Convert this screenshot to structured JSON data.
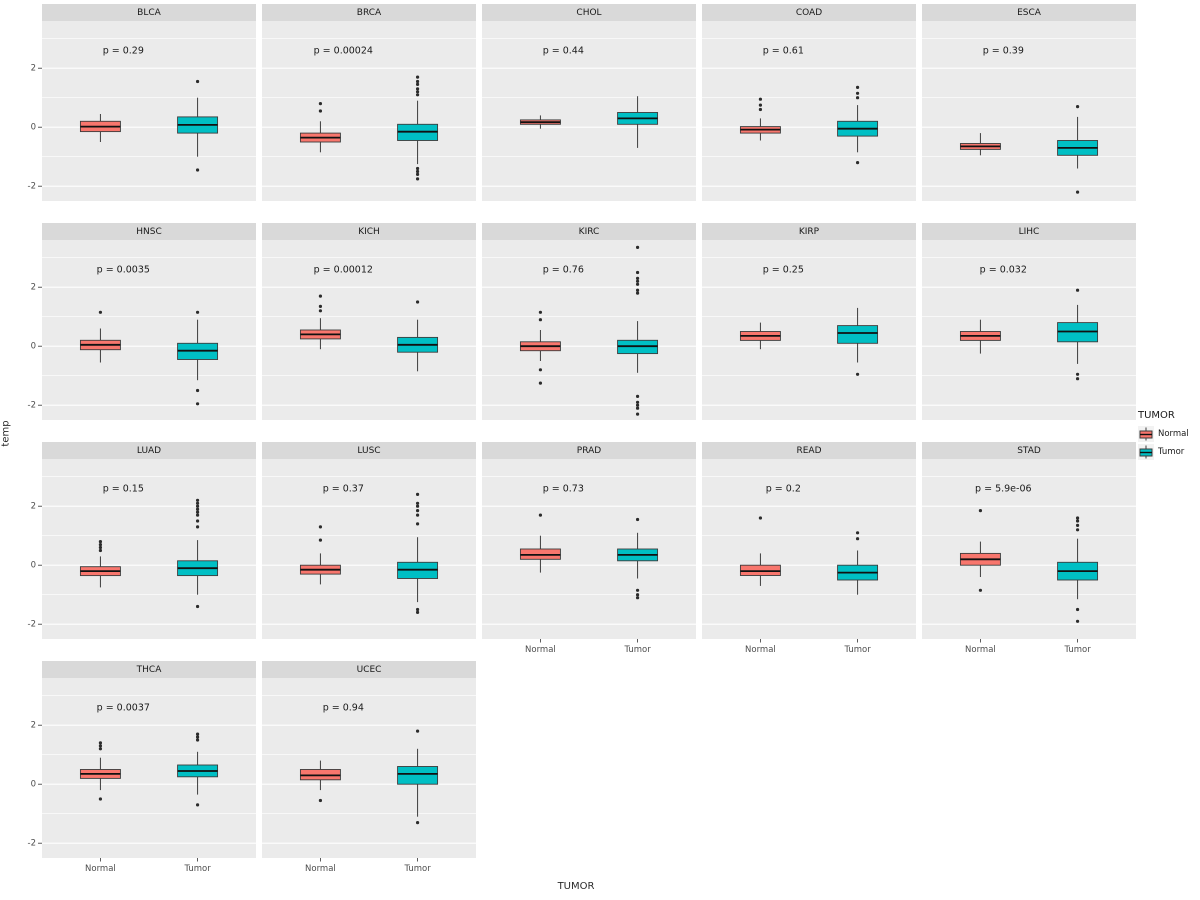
{
  "chart_data": {
    "type": "boxplot",
    "title": "",
    "xlabel": "TUMOR",
    "ylabel": "temp",
    "ylim": [
      -2.5,
      3.6
    ],
    "yticks": [
      -2,
      0,
      2
    ],
    "minor_ticks": [
      -1,
      1,
      3
    ],
    "categories": [
      "Normal",
      "Tumor"
    ],
    "legend": {
      "title": "TUMOR",
      "entries": [
        {
          "label": "Normal",
          "color": "#F8766D"
        },
        {
          "label": "Tumor",
          "color": "#00BFC4"
        }
      ]
    },
    "colors": {
      "panel_bg": "#EBEBEB",
      "strip_bg": "#D9D9D9",
      "grid": "#FFFFFF",
      "box_stroke": "#3C3C3C",
      "median": "#111111",
      "outlier": "#2B2B2B",
      "series": {
        "Normal": "#F8766D",
        "Tumor": "#00BFC4"
      }
    },
    "facets": [
      {
        "name": "BLCA",
        "p_label": "p = 0.29",
        "boxes": [
          {
            "group": "Normal",
            "lower_whisker": -0.5,
            "q1": -0.15,
            "median": 0.02,
            "q3": 0.2,
            "upper_whisker": 0.45,
            "outliers": []
          },
          {
            "group": "Tumor",
            "lower_whisker": -1.0,
            "q1": -0.2,
            "median": 0.08,
            "q3": 0.35,
            "upper_whisker": 1.0,
            "outliers": [
              1.55,
              -1.45
            ]
          }
        ]
      },
      {
        "name": "BRCA",
        "p_label": "p = 0.00024",
        "boxes": [
          {
            "group": "Normal",
            "lower_whisker": -0.85,
            "q1": -0.5,
            "median": -0.35,
            "q3": -0.2,
            "upper_whisker": 0.2,
            "outliers": [
              0.55,
              0.8
            ]
          },
          {
            "group": "Tumor",
            "lower_whisker": -1.25,
            "q1": -0.45,
            "median": -0.15,
            "q3": 0.1,
            "upper_whisker": 0.9,
            "outliers": [
              1.1,
              1.2,
              1.3,
              1.45,
              1.55,
              1.7,
              -1.4,
              -1.5,
              -1.6,
              -1.75
            ]
          }
        ]
      },
      {
        "name": "CHOL",
        "p_label": "p = 0.44",
        "boxes": [
          {
            "group": "Normal",
            "lower_whisker": -0.05,
            "q1": 0.1,
            "median": 0.17,
            "q3": 0.25,
            "upper_whisker": 0.4,
            "outliers": []
          },
          {
            "group": "Tumor",
            "lower_whisker": -0.7,
            "q1": 0.1,
            "median": 0.3,
            "q3": 0.5,
            "upper_whisker": 1.05,
            "outliers": []
          }
        ]
      },
      {
        "name": "COAD",
        "p_label": "p = 0.61",
        "boxes": [
          {
            "group": "Normal",
            "lower_whisker": -0.45,
            "q1": -0.2,
            "median": -0.08,
            "q3": 0.02,
            "upper_whisker": 0.3,
            "outliers": [
              0.6,
              0.75,
              0.95
            ]
          },
          {
            "group": "Tumor",
            "lower_whisker": -0.85,
            "q1": -0.3,
            "median": -0.05,
            "q3": 0.2,
            "upper_whisker": 0.75,
            "outliers": [
              1.0,
              1.15,
              1.35,
              -1.2
            ]
          }
        ]
      },
      {
        "name": "ESCA",
        "p_label": "p = 0.39",
        "boxes": [
          {
            "group": "Normal",
            "lower_whisker": -0.95,
            "q1": -0.75,
            "median": -0.65,
            "q3": -0.55,
            "upper_whisker": -0.2,
            "outliers": []
          },
          {
            "group": "Tumor",
            "lower_whisker": -1.4,
            "q1": -0.95,
            "median": -0.7,
            "q3": -0.45,
            "upper_whisker": 0.35,
            "outliers": [
              0.7,
              -2.2
            ]
          }
        ]
      },
      {
        "name": "HNSC",
        "p_label": "p = 0.0035",
        "boxes": [
          {
            "group": "Normal",
            "lower_whisker": -0.55,
            "q1": -0.12,
            "median": 0.05,
            "q3": 0.2,
            "upper_whisker": 0.6,
            "outliers": [
              1.15
            ]
          },
          {
            "group": "Tumor",
            "lower_whisker": -1.15,
            "q1": -0.45,
            "median": -0.15,
            "q3": 0.1,
            "upper_whisker": 0.9,
            "outliers": [
              1.15,
              -1.5,
              -1.95
            ]
          }
        ]
      },
      {
        "name": "KICH",
        "p_label": "p = 0.00012",
        "boxes": [
          {
            "group": "Normal",
            "lower_whisker": -0.1,
            "q1": 0.25,
            "median": 0.4,
            "q3": 0.55,
            "upper_whisker": 0.95,
            "outliers": [
              1.2,
              1.35,
              1.7
            ]
          },
          {
            "group": "Tumor",
            "lower_whisker": -0.85,
            "q1": -0.2,
            "median": 0.05,
            "q3": 0.3,
            "upper_whisker": 0.9,
            "outliers": [
              1.5
            ]
          }
        ]
      },
      {
        "name": "KIRC",
        "p_label": "p = 0.76",
        "boxes": [
          {
            "group": "Normal",
            "lower_whisker": -0.5,
            "q1": -0.15,
            "median": 0.0,
            "q3": 0.15,
            "upper_whisker": 0.55,
            "outliers": [
              0.9,
              1.15,
              -0.8,
              -1.25
            ]
          },
          {
            "group": "Tumor",
            "lower_whisker": -0.9,
            "q1": -0.25,
            "median": 0.0,
            "q3": 0.2,
            "upper_whisker": 0.85,
            "outliers": [
              3.35,
              2.5,
              2.3,
              2.2,
              2.1,
              1.9,
              1.8,
              -1.7,
              -1.9,
              -2.0,
              -2.1,
              -2.3
            ]
          }
        ]
      },
      {
        "name": "KIRP",
        "p_label": "p = 0.25",
        "boxes": [
          {
            "group": "Normal",
            "lower_whisker": -0.1,
            "q1": 0.2,
            "median": 0.35,
            "q3": 0.5,
            "upper_whisker": 0.8,
            "outliers": []
          },
          {
            "group": "Tumor",
            "lower_whisker": -0.55,
            "q1": 0.1,
            "median": 0.45,
            "q3": 0.7,
            "upper_whisker": 1.3,
            "outliers": [
              -0.95
            ]
          }
        ]
      },
      {
        "name": "LIHC",
        "p_label": "p = 0.032",
        "boxes": [
          {
            "group": "Normal",
            "lower_whisker": -0.25,
            "q1": 0.2,
            "median": 0.35,
            "q3": 0.5,
            "upper_whisker": 0.9,
            "outliers": []
          },
          {
            "group": "Tumor",
            "lower_whisker": -0.6,
            "q1": 0.15,
            "median": 0.5,
            "q3": 0.8,
            "upper_whisker": 1.4,
            "outliers": [
              1.9,
              -0.95,
              -1.1
            ]
          }
        ]
      },
      {
        "name": "LUAD",
        "p_label": "p = 0.15",
        "boxes": [
          {
            "group": "Normal",
            "lower_whisker": -0.75,
            "q1": -0.35,
            "median": -0.2,
            "q3": -0.05,
            "upper_whisker": 0.3,
            "outliers": [
              0.5,
              0.6,
              0.7,
              0.8
            ]
          },
          {
            "group": "Tumor",
            "lower_whisker": -1.0,
            "q1": -0.35,
            "median": -0.1,
            "q3": 0.15,
            "upper_whisker": 0.85,
            "outliers": [
              2.2,
              2.1,
              2.0,
              1.9,
              1.8,
              1.7,
              1.5,
              1.3,
              -1.4
            ]
          }
        ]
      },
      {
        "name": "LUSC",
        "p_label": "p = 0.37",
        "boxes": [
          {
            "group": "Normal",
            "lower_whisker": -0.65,
            "q1": -0.3,
            "median": -0.15,
            "q3": 0.0,
            "upper_whisker": 0.4,
            "outliers": [
              0.85,
              1.3
            ]
          },
          {
            "group": "Tumor",
            "lower_whisker": -1.25,
            "q1": -0.45,
            "median": -0.15,
            "q3": 0.1,
            "upper_whisker": 0.95,
            "outliers": [
              2.4,
              2.1,
              2.0,
              1.85,
              1.7,
              1.4,
              -1.5,
              -1.6
            ]
          }
        ]
      },
      {
        "name": "PRAD",
        "p_label": "p = 0.73",
        "boxes": [
          {
            "group": "Normal",
            "lower_whisker": -0.25,
            "q1": 0.2,
            "median": 0.35,
            "q3": 0.55,
            "upper_whisker": 1.0,
            "outliers": [
              1.7
            ]
          },
          {
            "group": "Tumor",
            "lower_whisker": -0.45,
            "q1": 0.15,
            "median": 0.35,
            "q3": 0.55,
            "upper_whisker": 1.1,
            "outliers": [
              1.55,
              -0.85,
              -1.0,
              -1.1
            ]
          }
        ]
      },
      {
        "name": "READ",
        "p_label": "p = 0.2",
        "boxes": [
          {
            "group": "Normal",
            "lower_whisker": -0.7,
            "q1": -0.35,
            "median": -0.2,
            "q3": 0.0,
            "upper_whisker": 0.4,
            "outliers": [
              1.6
            ]
          },
          {
            "group": "Tumor",
            "lower_whisker": -1.0,
            "q1": -0.5,
            "median": -0.25,
            "q3": 0.0,
            "upper_whisker": 0.5,
            "outliers": [
              0.9,
              1.1
            ]
          }
        ]
      },
      {
        "name": "STAD",
        "p_label": "p = 5.9e-06",
        "boxes": [
          {
            "group": "Normal",
            "lower_whisker": -0.4,
            "q1": 0.0,
            "median": 0.2,
            "q3": 0.4,
            "upper_whisker": 0.8,
            "outliers": [
              1.85,
              -0.85
            ]
          },
          {
            "group": "Tumor",
            "lower_whisker": -1.15,
            "q1": -0.5,
            "median": -0.2,
            "q3": 0.1,
            "upper_whisker": 0.9,
            "outliers": [
              1.6,
              1.5,
              1.35,
              1.2,
              -1.5,
              -1.9
            ]
          }
        ]
      },
      {
        "name": "THCA",
        "p_label": "p = 0.0037",
        "boxes": [
          {
            "group": "Normal",
            "lower_whisker": -0.2,
            "q1": 0.2,
            "median": 0.35,
            "q3": 0.5,
            "upper_whisker": 0.9,
            "outliers": [
              1.2,
              1.3,
              1.4,
              -0.5
            ]
          },
          {
            "group": "Tumor",
            "lower_whisker": -0.35,
            "q1": 0.25,
            "median": 0.45,
            "q3": 0.65,
            "upper_whisker": 1.1,
            "outliers": [
              1.7,
              1.6,
              1.5,
              -0.7
            ]
          }
        ]
      },
      {
        "name": "UCEC",
        "p_label": "p = 0.94",
        "boxes": [
          {
            "group": "Normal",
            "lower_whisker": -0.2,
            "q1": 0.15,
            "median": 0.3,
            "q3": 0.5,
            "upper_whisker": 0.8,
            "outliers": [
              -0.55
            ]
          },
          {
            "group": "Tumor",
            "lower_whisker": -1.1,
            "q1": 0.0,
            "median": 0.35,
            "q3": 0.6,
            "upper_whisker": 1.2,
            "outliers": [
              1.8,
              -1.3
            ]
          }
        ]
      }
    ]
  }
}
